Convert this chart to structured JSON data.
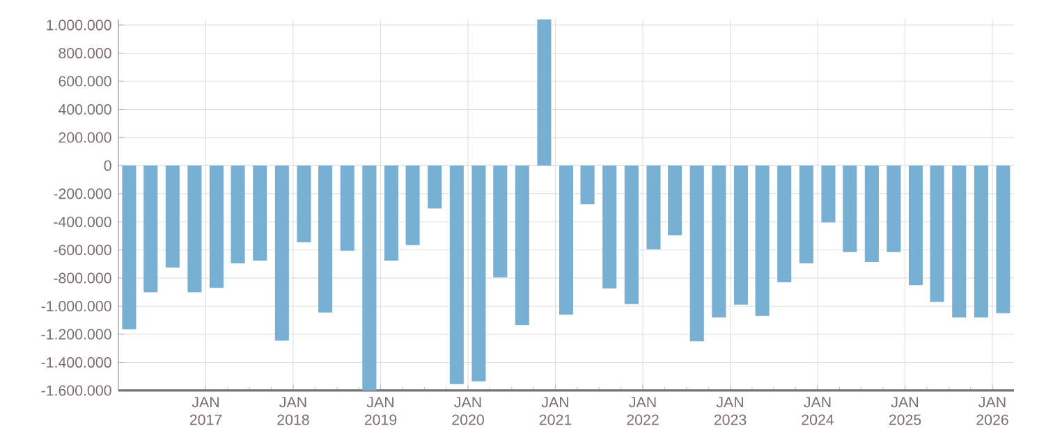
{
  "chart_data": {
    "type": "bar",
    "color": "#78b0d3",
    "grid": true,
    "x": [
      "2016-02-15",
      "2016-05-15",
      "2016-08-15",
      "2016-11-15",
      "2017-02-15",
      "2017-05-15",
      "2017-08-15",
      "2017-11-15",
      "2018-02-15",
      "2018-05-15",
      "2018-08-15",
      "2018-11-15",
      "2019-02-15",
      "2019-05-15",
      "2019-08-15",
      "2019-11-15",
      "2020-02-15",
      "2020-05-15",
      "2020-08-15",
      "2020-11-15",
      "2021-02-15",
      "2021-05-15",
      "2021-08-15",
      "2021-11-15",
      "2022-02-15",
      "2022-05-15",
      "2022-08-15",
      "2022-11-15",
      "2023-02-15",
      "2023-05-15",
      "2023-08-15",
      "2023-11-15",
      "2024-02-15",
      "2024-05-15",
      "2024-08-15",
      "2024-11-15",
      "2025-02-15",
      "2025-05-15",
      "2025-08-15",
      "2025-11-15",
      "2026-02-15"
    ],
    "values": [
      -1165000,
      -900000,
      -725000,
      -900000,
      -870000,
      -695000,
      -675000,
      -1245000,
      -545000,
      -1045000,
      -605000,
      -1600000,
      -675000,
      -565000,
      -305000,
      -1555000,
      -1535000,
      -795000,
      -1135000,
      1040000,
      -1060000,
      -275000,
      -875000,
      -985000,
      -595000,
      -495000,
      -1250000,
      -1080000,
      -990000,
      -1070000,
      -830000,
      -695000,
      -405000,
      -615000,
      -685000,
      -615000,
      -850000,
      -970000,
      -1080000,
      -1080000,
      -1050000
    ],
    "xlim": [
      "2016-01-01",
      "2026-04-01"
    ],
    "xticks": [
      {
        "value": "2017-01-01",
        "label": "JAN 2017"
      },
      {
        "value": "2018-01-01",
        "label": "JAN 2018"
      },
      {
        "value": "2019-01-01",
        "label": "JAN 2019"
      },
      {
        "value": "2020-01-01",
        "label": "JAN 2020"
      },
      {
        "value": "2021-01-01",
        "label": "JAN 2021"
      },
      {
        "value": "2022-01-01",
        "label": "JAN 2022"
      },
      {
        "value": "2023-01-01",
        "label": "JAN 2023"
      },
      {
        "value": "2024-01-01",
        "label": "JAN 2024"
      },
      {
        "value": "2025-01-01",
        "label": "JAN 2025"
      },
      {
        "value": "2026-01-01",
        "label": "JAN 2026"
      }
    ],
    "ylim": [
      -1600000,
      1040000
    ],
    "yticks": [
      {
        "value": -1600000,
        "label": "-1.600.000"
      },
      {
        "value": -1400000,
        "label": "-1.400.000"
      },
      {
        "value": -1200000,
        "label": "-1.200.000"
      },
      {
        "value": -1000000,
        "label": "-1.000.000"
      },
      {
        "value": -800000,
        "label": "-800.000"
      },
      {
        "value": -600000,
        "label": "-600.000"
      },
      {
        "value": -400000,
        "label": "-400.000"
      },
      {
        "value": -200000,
        "label": "-200.000"
      },
      {
        "value": 0,
        "label": "0"
      },
      {
        "value": 200000,
        "label": "200.000"
      },
      {
        "value": 400000,
        "label": "400.000"
      },
      {
        "value": 600000,
        "label": "600.000"
      },
      {
        "value": 800000,
        "label": "800.000"
      },
      {
        "value": 1000000,
        "label": "1.000.000"
      }
    ]
  }
}
